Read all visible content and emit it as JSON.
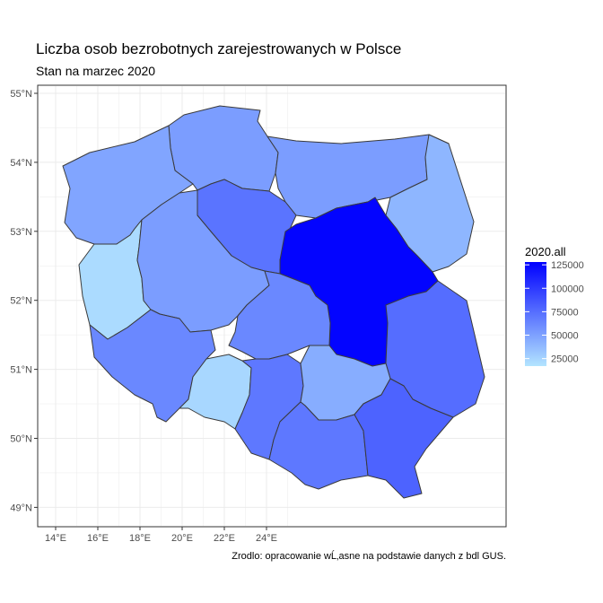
{
  "title": "Liczba osob bezrobotnych zarejestrowanych w Polsce",
  "subtitle": "Stan na marzec 2020",
  "caption": "Zrodlo: opracowanie wĹ‚asne na podstawie danych z bdl GUS.",
  "legend": {
    "title": "2020.all",
    "labels": [
      "125000",
      "100000",
      "75000",
      "50000",
      "25000"
    ],
    "low_color": "#b3e5ff",
    "high_color": "#0000ff"
  },
  "x_ticks": [
    "14°E",
    "16°E",
    "18°E",
    "20°E",
    "22°E",
    "24°E"
  ],
  "y_ticks": [
    "55°N",
    "54°N",
    "53°N",
    "52°N",
    "51°N",
    "50°N",
    "49°N"
  ],
  "chart_data": {
    "type": "choropleth",
    "variable": "2020.all",
    "xlim": [
      13.7,
      24.6
    ],
    "ylim": [
      48.8,
      55.1
    ],
    "value_range": [
      17000,
      128000
    ],
    "regions": [
      {
        "id": "pomorskie",
        "value": 52000
      },
      {
        "id": "warminsko-mazurskie",
        "value": 52000
      },
      {
        "id": "podlaskie",
        "value": 40000
      },
      {
        "id": "zachodniopomorskie",
        "value": 48000
      },
      {
        "id": "kujawsko-pomorskie",
        "value": 72000
      },
      {
        "id": "mazowieckie",
        "value": 126000
      },
      {
        "id": "lubuskie",
        "value": 22000
      },
      {
        "id": "wielkopolskie",
        "value": 52000
      },
      {
        "id": "lodzkie",
        "value": 62000
      },
      {
        "id": "lubelskie",
        "value": 75000
      },
      {
        "id": "dolnoslaskie",
        "value": 62000
      },
      {
        "id": "opolskie",
        "value": 24000
      },
      {
        "id": "slaskie",
        "value": 70000
      },
      {
        "id": "swietokrzyskie",
        "value": 44000
      },
      {
        "id": "malopolskie",
        "value": 70000
      },
      {
        "id": "podkarpackie",
        "value": 80000
      }
    ]
  }
}
